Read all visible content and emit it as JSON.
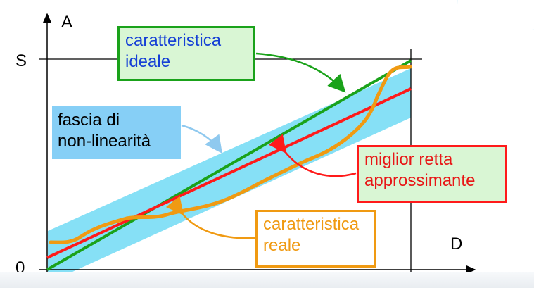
{
  "axes": {
    "y_label": "A",
    "x_label": "D",
    "y_max_label": "S",
    "origin_label": "0"
  },
  "labels": {
    "ideal": {
      "line1": "caratteristica",
      "line2": "ideale"
    },
    "band": {
      "line1": "fascia di",
      "line2": "non-linearità"
    },
    "best_fit": {
      "line1": "miglior retta",
      "line2": "approssimante"
    },
    "real": {
      "line1": "caratteristica",
      "line2": "reale"
    }
  },
  "colors": {
    "ideal": "#1aa21a",
    "best_fit": "#ff1a1a",
    "real": "#f09a12",
    "band": "#86e0f6",
    "band_label_bg": "#86cff6",
    "box_bg_green": "#d9f6d4",
    "callout_arrow_band": "#8fc9ef"
  }
}
